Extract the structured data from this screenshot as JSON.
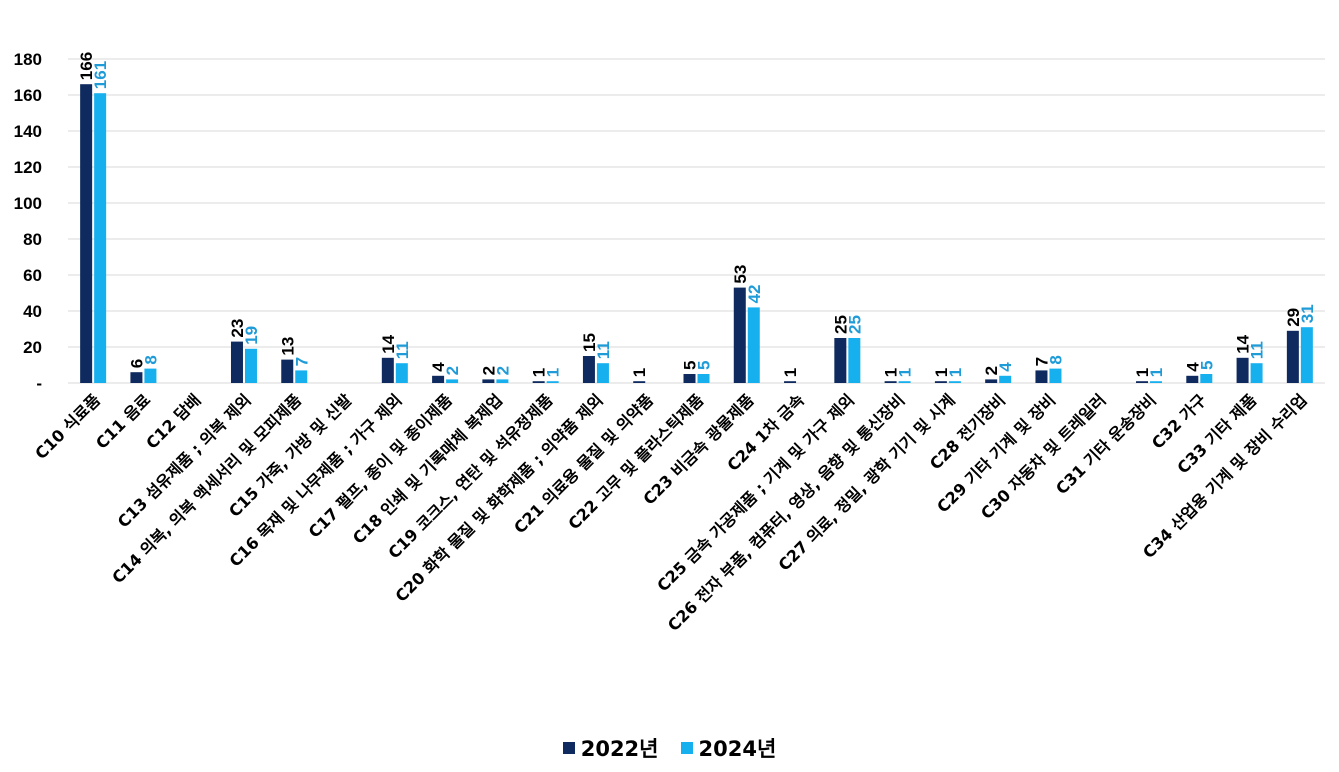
{
  "chart_data": {
    "type": "bar",
    "categories": [
      "C10 식료품",
      "C11 음료",
      "C12 담배",
      "C13 섬유제품 ; 의복 제외",
      "C14 의복, 의복 액세서리 및 모피제품",
      "C15 가죽, 가방 및 신발",
      "C16 목재 및 나무제품 ; 가구 제외",
      "C17 펄프, 종이 및 종이제품",
      "C18 인쇄 및 기록매체 복제업",
      "C19 코크스, 연탄 및 석유정제품",
      "C20 화학 물질 및 화학제품 ; 의약품 제외",
      "C21 의료용 물질 및 의약품",
      "C22 고무 및 플라스틱제품",
      "C23 비금속 광물제품",
      "C24 1차 금속",
      "C25 금속 가공제품 ; 기계 및 가구 제외",
      "C26 전자 부품, 컴퓨터, 영상, 음향 및 통신장비",
      "C27 의료, 정밀, 광학 기기 및 시계",
      "C28 전기장비",
      "C29 기타 기계 및 장비",
      "C30 자동차 및 트레일러",
      "C31 기타 운송장비",
      "C32 가구",
      "C33 기타 제품",
      "C34 산업용 기계 및 장비 수리업"
    ],
    "series": [
      {
        "name": "2022년",
        "color": "#0f2a5e",
        "values": [
          166,
          6,
          null,
          23,
          13,
          null,
          14,
          4,
          2,
          1,
          15,
          1,
          5,
          53,
          1,
          25,
          1,
          1,
          2,
          7,
          null,
          1,
          4,
          14,
          29
        ],
        "labels": [
          "166",
          "6",
          "",
          "23",
          "13",
          "",
          "14",
          "4",
          "2",
          "1",
          "15",
          "1",
          "5",
          "53",
          "1",
          "25",
          "1",
          "1",
          "2",
          "7",
          "",
          "1",
          "4",
          "14",
          "29"
        ]
      },
      {
        "name": "2024년",
        "color": "#17b0ee",
        "values": [
          161,
          8,
          null,
          19,
          7,
          null,
          11,
          2,
          2,
          1,
          11,
          null,
          5,
          42,
          null,
          25,
          1,
          1,
          4,
          8,
          null,
          1,
          5,
          11,
          31
        ],
        "labels": [
          "161",
          "8",
          "",
          "19",
          "7",
          "",
          "11",
          "2",
          "2",
          "1",
          "11",
          "",
          "5",
          "42",
          "",
          "25",
          "1",
          "1",
          "4",
          "8",
          "",
          "1",
          "5",
          "11",
          "31"
        ]
      }
    ],
    "y_ticks": [
      "-",
      "20",
      "40",
      "60",
      "80",
      "100",
      "120",
      "140",
      "160",
      "180"
    ],
    "ylim": [
      0,
      180
    ],
    "grid": true,
    "legend_position": "bottom-center",
    "title": "",
    "xlabel": "",
    "ylabel": ""
  }
}
